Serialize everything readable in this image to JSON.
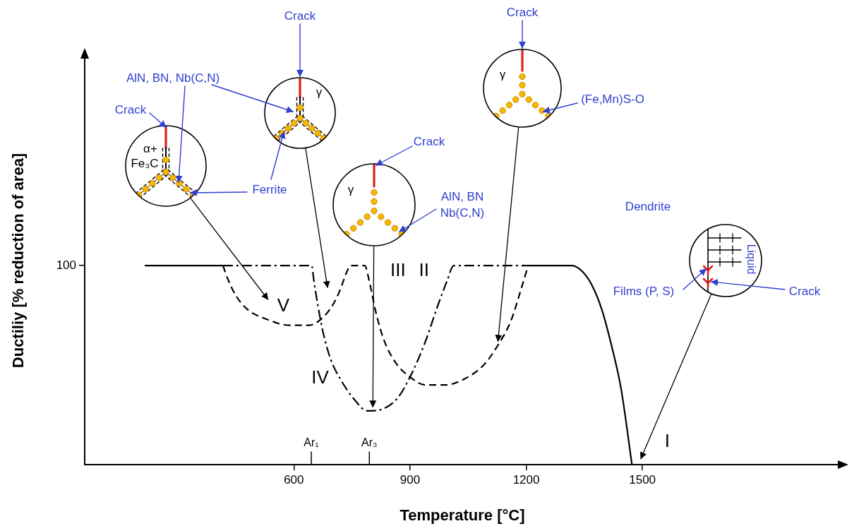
{
  "chart_data": {
    "type": "line",
    "x_label": "Temperature [°C]",
    "y_label": "Ductiliy [% reduction of area]",
    "xlim": [
      60,
      2010
    ],
    "xticks": [
      600,
      900,
      1200,
      1500
    ],
    "ylim": [
      0,
      205
    ],
    "yticks": [
      100
    ],
    "grid": false,
    "series": [
      {
        "color": "#000000",
        "line_style": "solid",
        "x": [
          215,
          417,
          800,
          1200,
          1318,
          1345,
          1370,
          1395,
          1420,
          1445,
          1473
        ],
        "values": [
          100,
          100,
          null,
          100,
          100,
          97,
          90,
          78,
          60,
          38,
          0
        ]
      },
      {
        "color": "#000000",
        "line_style": "dashed",
        "x": [
          417,
          430,
          450,
          480,
          530,
          590,
          640,
          670,
          700,
          720,
          735,
          747,
          783,
          795,
          810,
          830,
          860,
          900,
          940,
          990,
          1040,
          1090,
          1127,
          1160,
          1185,
          1205
        ],
        "values": [
          100,
          93,
          85,
          78,
          73,
          70,
          70,
          73,
          80,
          88,
          96,
          100,
          100,
          92,
          78,
          64,
          52,
          44,
          40,
          40,
          43,
          50,
          60,
          72,
          87,
          100
        ]
      },
      {
        "color": "#000000",
        "line_style": "dash-dot",
        "x": [
          417,
          646,
          652,
          662,
          676,
          695,
          720,
          755,
          790,
          830,
          870,
          905,
          940,
          970,
          995,
          1013,
          1200
        ],
        "values": [
          100,
          100,
          92,
          80,
          66,
          53,
          43,
          33,
          27,
          28,
          34,
          46,
          62,
          79,
          92,
          100,
          100
        ]
      }
    ],
    "annotations": [
      {
        "text": "V",
        "x": 573,
        "y": 80
      },
      {
        "text": "IV",
        "x": 668,
        "y": 44
      },
      {
        "text": "III",
        "x": 869,
        "y": 98
      },
      {
        "text": "II",
        "x": 936,
        "y": 98
      },
      {
        "text": "I",
        "x": 1564,
        "y": 12
      }
    ],
    "axis_marks": [
      {
        "text": "Ar₁",
        "x": 645
      },
      {
        "text": "Ar₃",
        "x": 795
      }
    ],
    "insets": [
      {
        "inside": [
          "α+",
          "Fe₃C"
        ],
        "points_to": {
          "x": 533,
          "y": 83
        }
      },
      {
        "inside": [
          "γ"
        ],
        "points_to": {
          "x": 687,
          "y": 89
        }
      },
      {
        "inside": [
          "γ"
        ],
        "points_to": {
          "x": 804,
          "y": 29
        }
      },
      {
        "inside": [
          "γ"
        ],
        "points_to": {
          "x": 1127,
          "y": 62
        }
      },
      {
        "inside": [
          "Liquid"
        ],
        "points_to": {
          "x": 1496,
          "y": 3
        }
      }
    ],
    "callouts": [
      {
        "text": "Crack",
        "insets": [
          0
        ]
      },
      {
        "text": "AlN, BN, Nb(C,N)",
        "insets": [
          1,
          0
        ]
      },
      {
        "text": "Ferrite",
        "insets": [
          1,
          0
        ]
      },
      {
        "text": "Crack",
        "insets": [
          1
        ]
      },
      {
        "text": "Crack",
        "insets": [
          2
        ]
      },
      {
        "text": [
          "AlN, BN",
          "Nb(C,N)"
        ],
        "insets": [
          2
        ]
      },
      {
        "text": "Crack",
        "insets": [
          3
        ]
      },
      {
        "text": "(Fe,Mn)S-O",
        "insets": [
          3
        ]
      },
      {
        "text": "Dendrite",
        "insets": [
          4
        ]
      },
      {
        "text": "Films (P, S)",
        "insets": [
          4
        ]
      },
      {
        "text": "Crack",
        "insets": [
          4
        ]
      }
    ]
  }
}
